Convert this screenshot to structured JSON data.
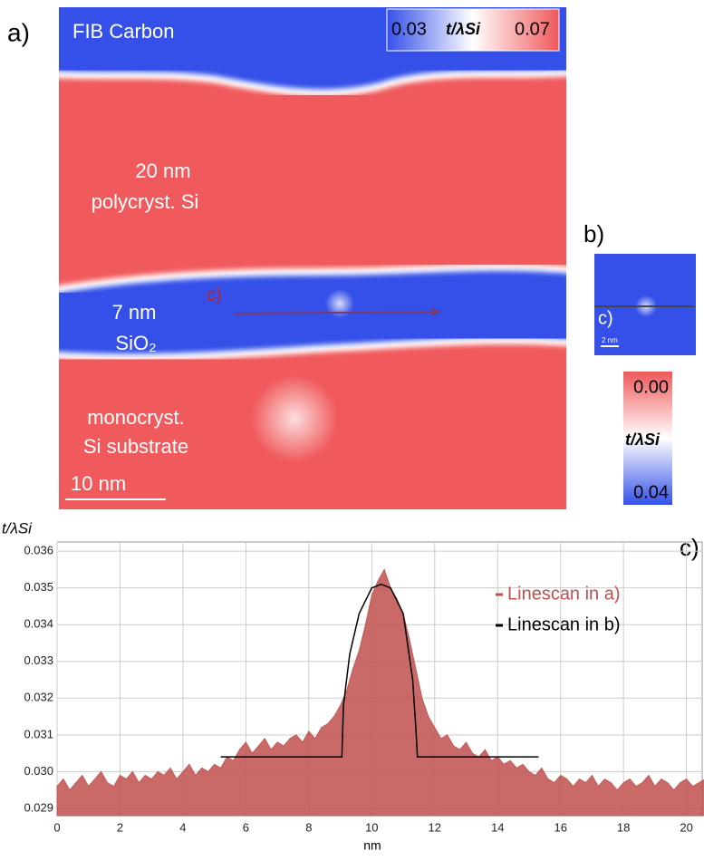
{
  "panel_a": {
    "label": "a)",
    "top_layer": "FIB Carbon",
    "colorbar": {
      "min": "0.03",
      "symbol": "t/λSi",
      "max": "0.07"
    },
    "layer_1": [
      "20 nm",
      "polycryst. Si"
    ],
    "layer_2": [
      "7 nm",
      "SiO₂"
    ],
    "scan_label": "c)",
    "layer_3": [
      "monocryst.",
      "Si substrate"
    ],
    "scale_bar": "10  nm"
  },
  "panel_b": {
    "label": "b)",
    "scan_label": "c)",
    "scale_bar": "2 nm",
    "colorbar": {
      "top": "0.00",
      "symbol": "t/λSi",
      "bottom": "0.04"
    }
  },
  "chart_data": {
    "type": "area",
    "panel_label": "c)",
    "y_label": "t/λSi",
    "x_label": "nm",
    "xlim": [
      0,
      20.5
    ],
    "xticks": [
      0,
      2,
      4,
      6,
      8,
      10,
      12,
      14,
      16,
      18,
      20
    ],
    "ylim": [
      0.0288,
      0.03625
    ],
    "yticks": [
      0.029,
      {
        "value": 0.03,
        "label": "0.030"
      },
      0.031,
      0.032,
      0.033,
      0.034,
      0.035,
      0.036
    ],
    "grid": true,
    "legend": "upper right",
    "series": [
      {
        "name": "Linescan in a)",
        "color": "#c0504d",
        "style": "area",
        "x": [
          0,
          0.2,
          0.4,
          0.6,
          0.8,
          1,
          1.2,
          1.4,
          1.6,
          1.8,
          2,
          2.2,
          2.4,
          2.6,
          2.8,
          3,
          3.2,
          3.4,
          3.6,
          3.8,
          4,
          4.2,
          4.4,
          4.6,
          4.8,
          5,
          5.2,
          5.4,
          5.6,
          5.8,
          6,
          6.2,
          6.4,
          6.6,
          6.8,
          7,
          7.2,
          7.4,
          7.6,
          7.8,
          8,
          8.2,
          8.4,
          8.6,
          8.8,
          9,
          9.2,
          9.4,
          9.6,
          9.8,
          10,
          10.2,
          10.4,
          10.6,
          10.8,
          11,
          11.2,
          11.4,
          11.6,
          11.8,
          12,
          12.2,
          12.4,
          12.6,
          12.8,
          13,
          13.2,
          13.4,
          13.6,
          13.8,
          14,
          14.2,
          14.4,
          14.6,
          14.8,
          15,
          15.2,
          15.4,
          15.6,
          15.8,
          16,
          16.2,
          16.4,
          16.6,
          16.8,
          17,
          17.2,
          17.4,
          17.6,
          17.8,
          18,
          18.2,
          18.4,
          18.6,
          18.8,
          19,
          19.2,
          19.4,
          19.6,
          19.8,
          20,
          20.2,
          20.4,
          20.6
        ],
        "values": [
          0.0296,
          0.0298,
          0.0295,
          0.0297,
          0.0299,
          0.0296,
          0.0298,
          0.03,
          0.0297,
          0.0296,
          0.0299,
          0.0298,
          0.03,
          0.0297,
          0.0299,
          0.0298,
          0.03,
          0.0299,
          0.0301,
          0.0298,
          0.03,
          0.0302,
          0.0299,
          0.0301,
          0.03,
          0.0302,
          0.0301,
          0.0304,
          0.0303,
          0.0306,
          0.0308,
          0.0305,
          0.0307,
          0.0309,
          0.0306,
          0.0308,
          0.0307,
          0.0309,
          0.031,
          0.0308,
          0.0311,
          0.0309,
          0.0312,
          0.0313,
          0.0315,
          0.0318,
          0.0322,
          0.0328,
          0.0333,
          0.034,
          0.0348,
          0.0352,
          0.0355,
          0.035,
          0.0347,
          0.0343,
          0.0336,
          0.0328,
          0.032,
          0.0315,
          0.0312,
          0.0309,
          0.031,
          0.0307,
          0.0306,
          0.0308,
          0.0305,
          0.0304,
          0.0306,
          0.0303,
          0.0304,
          0.0302,
          0.0303,
          0.0301,
          0.0302,
          0.03,
          0.0299,
          0.0301,
          0.0298,
          0.0297,
          0.0299,
          0.0298,
          0.0296,
          0.0298,
          0.0297,
          0.0299,
          0.0296,
          0.0298,
          0.0297,
          0.0295,
          0.0297,
          0.0298,
          0.0296,
          0.0297,
          0.0299,
          0.0296,
          0.0298,
          0.0297,
          0.0295,
          0.0297,
          0.0298,
          0.0296,
          0.0297,
          0.0298
        ]
      },
      {
        "name": "Linescan in b)",
        "color": "#000000",
        "style": "line",
        "x": [
          5.2,
          9.05,
          9.1,
          9.3,
          9.6,
          10.0,
          10.3,
          10.6,
          11.0,
          11.3,
          11.4,
          11.45,
          15.3
        ],
        "values": [
          0.0304,
          0.0304,
          0.0318,
          0.0332,
          0.0343,
          0.035,
          0.0351,
          0.035,
          0.0343,
          0.0325,
          0.0312,
          0.0304,
          0.0304
        ]
      }
    ]
  }
}
